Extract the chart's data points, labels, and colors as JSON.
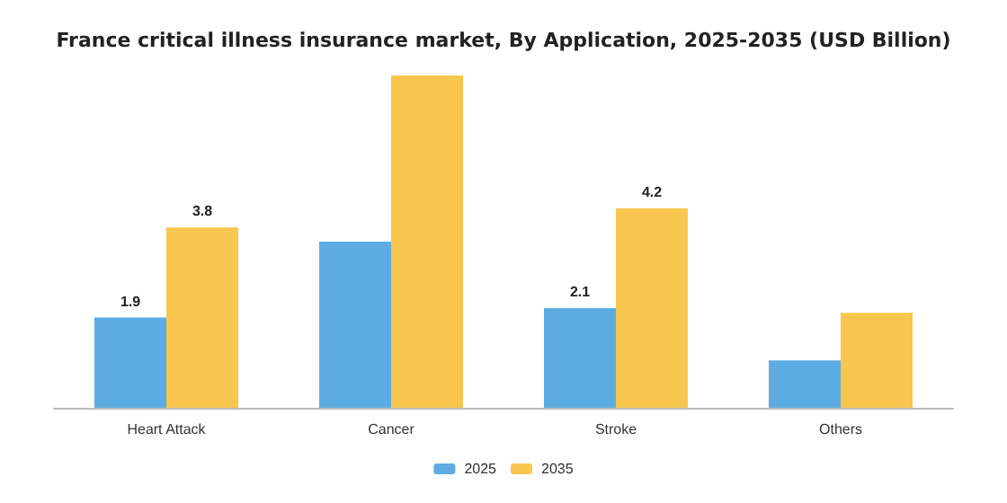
{
  "chart_data": {
    "type": "bar",
    "title": "France critical illness insurance market, By Application, 2025-2035 (USD Billion)",
    "categories": [
      "Heart Attack",
      "Cancer",
      "Stroke",
      "Others"
    ],
    "series": [
      {
        "name": "2025",
        "color": "#5dade2",
        "values": [
          1.9,
          3.5,
          2.1,
          1.0
        ],
        "value_labels": [
          "1.9",
          null,
          "2.1",
          null
        ]
      },
      {
        "name": "2035",
        "color": "#f9c74f",
        "values": [
          3.8,
          7.0,
          4.2,
          2.0
        ],
        "value_labels": [
          "3.8",
          null,
          "4.2",
          null
        ]
      }
    ],
    "legend": "bottom"
  }
}
